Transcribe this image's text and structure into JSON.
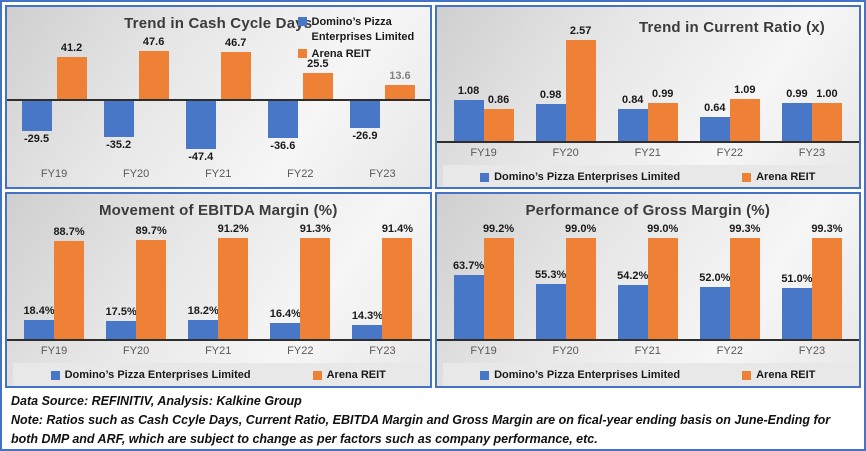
{
  "colors": {
    "dmp": "#4877C8",
    "arena": "#EE8136",
    "panel_border": "#4472C4",
    "axis": "#2e2e2e",
    "tick": "#595959",
    "label": "#1a1a1a",
    "label_muted": "#808080",
    "legend_bg": "#e8e8e8"
  },
  "chart_data": [
    {
      "type": "bar",
      "title": "Trend in Cash Cycle Days",
      "categories": [
        "FY19",
        "FY20",
        "FY21",
        "FY22",
        "FY23"
      ],
      "series": [
        {
          "name": "Domino’s Pizza Enterprises Limited",
          "color_key": "dmp",
          "values": [
            -29.5,
            -35.2,
            -47.4,
            -36.6,
            -26.9
          ],
          "labels": [
            "-29.5",
            "-35.2",
            "-47.4",
            "-36.6",
            "-26.9"
          ]
        },
        {
          "name": "Arena REIT",
          "color_key": "arena",
          "values": [
            41.2,
            47.6,
            46.7,
            25.5,
            13.6
          ],
          "labels": [
            "41.2",
            "47.6",
            "46.7",
            "25.5",
            "13.6"
          ],
          "muted_label_indices": [
            4
          ]
        }
      ],
      "diverging": true,
      "legend_position": "top-right",
      "pair_gap": 5,
      "grid": false
    },
    {
      "type": "bar",
      "title": "Trend in Current Ratio (x)",
      "categories": [
        "FY19",
        "FY20",
        "FY21",
        "FY22",
        "FY23"
      ],
      "series": [
        {
          "name": "Domino’s Pizza Enterprises Limited",
          "color_key": "dmp",
          "values": [
            1.08,
            0.98,
            0.84,
            0.64,
            0.99
          ],
          "labels": [
            "1.08",
            "0.98",
            "0.84",
            "0.64",
            "0.99"
          ]
        },
        {
          "name": "Arena REIT",
          "color_key": "arena",
          "values": [
            0.86,
            2.57,
            0.99,
            1.09,
            1.0
          ],
          "labels": [
            "0.86",
            "2.57",
            "0.99",
            "1.09",
            "1.00"
          ]
        }
      ],
      "diverging": false,
      "legend_position": "bottom",
      "pair_gap": 0,
      "grid": false
    },
    {
      "type": "bar",
      "title": "Movement of EBITDA Margin (%)",
      "categories": [
        "FY19",
        "FY20",
        "FY21",
        "FY22",
        "FY23"
      ],
      "series": [
        {
          "name": "Domino’s Pizza Enterprises Limited",
          "color_key": "dmp",
          "values": [
            18.4,
            17.5,
            18.2,
            16.4,
            14.3
          ],
          "labels": [
            "18.4%",
            "17.5%",
            "18.2%",
            "16.4%",
            "14.3%"
          ]
        },
        {
          "name": "Arena REIT",
          "color_key": "arena",
          "values": [
            88.7,
            89.7,
            91.2,
            91.3,
            91.4
          ],
          "labels": [
            "88.7%",
            "89.7%",
            "91.2%",
            "91.3%",
            "91.4%"
          ]
        }
      ],
      "diverging": false,
      "legend_position": "bottom",
      "pair_gap": 0,
      "grid": false
    },
    {
      "type": "bar",
      "title": "Performance of Gross Margin (%)",
      "categories": [
        "FY19",
        "FY20",
        "FY21",
        "FY22",
        "FY23"
      ],
      "series": [
        {
          "name": "Domino’s Pizza Enterprises Limited",
          "color_key": "dmp",
          "values": [
            63.7,
            55.3,
            54.2,
            52.0,
            51.0
          ],
          "labels": [
            "63.7%",
            "55.3%",
            "54.2%",
            "52.0%",
            "51.0%"
          ]
        },
        {
          "name": "Arena REIT",
          "color_key": "arena",
          "values": [
            99.2,
            99.0,
            99.0,
            99.3,
            99.3
          ],
          "labels": [
            "99.2%",
            "99.0%",
            "99.0%",
            "99.3%",
            "99.3%"
          ]
        }
      ],
      "diverging": false,
      "legend_position": "bottom",
      "pair_gap": 0,
      "grid": false
    }
  ],
  "footer": {
    "source": "Data Source: REFINITIV, Analysis: Kalkine Group",
    "note": "Note: Ratios such as Cash Ccyle Days, Current Ratio, EBITDA Margin and Gross Margin are on fical-year ending basis on June-Ending for both DMP and ARF, which are subject to change as per factors such as company performance, etc."
  }
}
